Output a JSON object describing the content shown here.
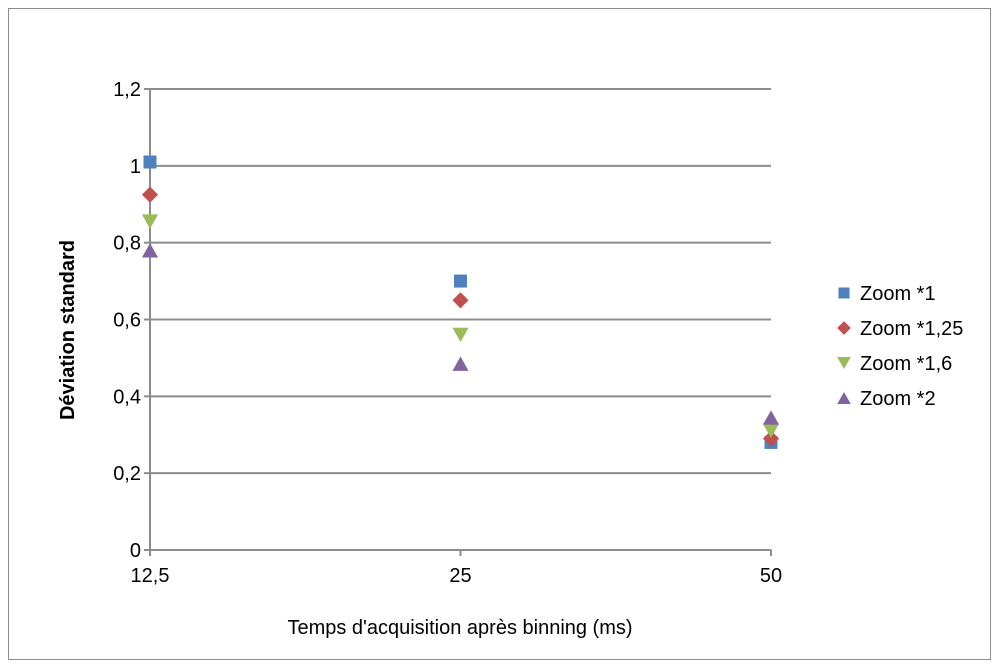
{
  "chart_data": {
    "type": "scatter",
    "title": "",
    "xlabel": "Temps d'acquisition après binning (ms)",
    "ylabel": "Déviation standard",
    "categories": [
      "12,5",
      "25",
      "50"
    ],
    "ylim": [
      0,
      1.2
    ],
    "yticks": [
      "0",
      "0,2",
      "0,4",
      "0,6",
      "0,8",
      "1",
      "1,2"
    ],
    "grid": true,
    "legend_position": "right",
    "series": [
      {
        "name": "Zoom *1",
        "marker": "square",
        "color": "#4f81bd",
        "values": [
          1.01,
          0.7,
          0.28
        ]
      },
      {
        "name": "Zoom *1,25",
        "marker": "diamond",
        "color": "#c0504d",
        "values": [
          0.925,
          0.65,
          0.29
        ]
      },
      {
        "name": "Zoom *1,6",
        "marker": "triangle-down",
        "color": "#9bbb59",
        "values": [
          0.855,
          0.56,
          0.31
        ]
      },
      {
        "name": "Zoom *2",
        "marker": "triangle-up",
        "color": "#8064a2",
        "values": [
          0.78,
          0.485,
          0.345
        ]
      }
    ]
  }
}
